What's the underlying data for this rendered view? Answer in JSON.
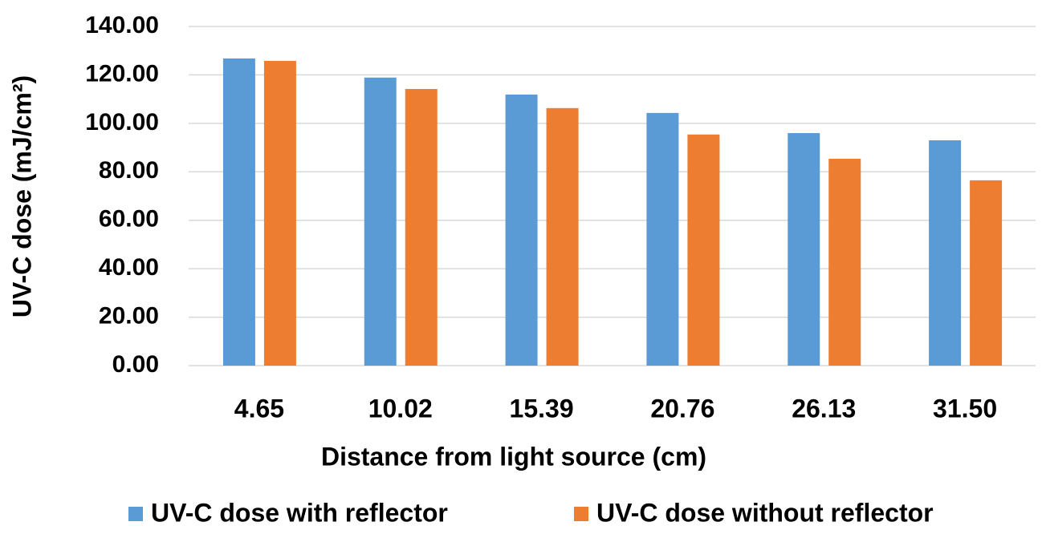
{
  "chart_data": {
    "type": "bar",
    "x_label": "Distance from light source (cm)",
    "y_label": "UV-C dose (mJ/cm²)",
    "categories": [
      "4.65",
      "10.02",
      "15.39",
      "20.76",
      "26.13",
      "31.50"
    ],
    "series": [
      {
        "name": "UV-C dose with reflector",
        "color": "#5b9bd5",
        "values": [
          126.8,
          118.9,
          111.9,
          104.3,
          96.0,
          93.0
        ]
      },
      {
        "name": "UV-C dose without reflector",
        "color": "#ed7d31",
        "values": [
          125.8,
          114.2,
          106.3,
          95.4,
          85.4,
          76.5
        ]
      }
    ],
    "ylim": [
      0,
      140
    ],
    "yticks": [
      {
        "value": 0,
        "label": "0.00"
      },
      {
        "value": 20,
        "label": "20.00"
      },
      {
        "value": 40,
        "label": "40.00"
      },
      {
        "value": 60,
        "label": "60.00"
      },
      {
        "value": 80,
        "label": "80.00"
      },
      {
        "value": 100,
        "label": "100.00"
      },
      {
        "value": 120,
        "label": "120.00"
      },
      {
        "value": 140,
        "label": "140.00"
      }
    ],
    "grid": true,
    "legend": "bottom"
  }
}
